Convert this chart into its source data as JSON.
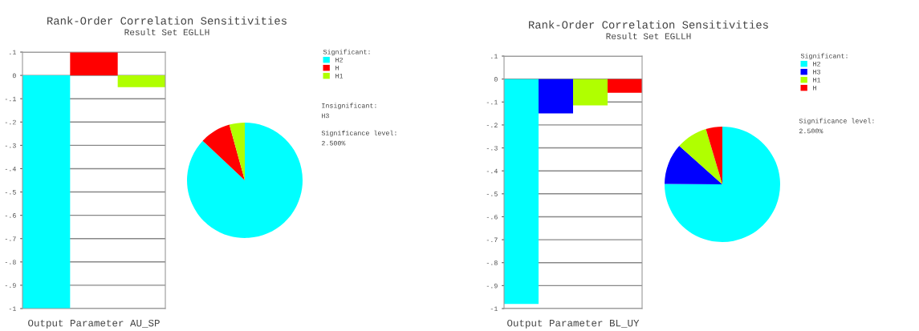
{
  "chart_data": [
    {
      "type": "bar",
      "title": "Rank-Order Correlation Sensitivities",
      "subtitle": "Result Set EGLLH",
      "xlabel": "Output Parameter AU_SP",
      "categories": [
        null,
        null,
        null
      ],
      "values": [
        -1,
        0.1,
        -0.05
      ],
      "colors": [
        "#00ffff",
        "#ff0000",
        "#b0ff00"
      ],
      "ylim": [
        -1,
        0.1
      ],
      "yticks": [
        {
          "value": 0.1,
          "label": ".1"
        },
        0,
        {
          "value": -0.1,
          "label": "-.1"
        },
        {
          "value": -0.2,
          "label": "-.2"
        },
        {
          "value": -0.3,
          "label": "-.3"
        },
        {
          "value": -0.4,
          "label": "-.4"
        },
        {
          "value": -0.5,
          "label": "-.5"
        },
        {
          "value": -0.6,
          "label": "-.6"
        },
        {
          "value": -0.7,
          "label": "-.7"
        },
        {
          "value": -0.8,
          "label": "-.8"
        },
        {
          "value": -0.9,
          "label": "-.9"
        },
        -1
      ],
      "grid": "y"
    },
    {
      "type": "pie",
      "categories": [
        "H2",
        "H",
        "H1"
      ],
      "values": [
        87,
        8.7,
        4.3
      ],
      "colors": [
        "#00ffff",
        "#ff0000",
        "#b0ff00"
      ],
      "legend": "right",
      "legend_title": "Significant:",
      "annotations": [
        "Insignificant:",
        "H3",
        "Significance level:",
        "2.500%"
      ]
    },
    {
      "type": "bar",
      "title": "Rank-Order Correlation Sensitivities",
      "subtitle": "Result Set EGLLH",
      "xlabel": "Output Parameter BL_UY",
      "categories": [
        null,
        null,
        null,
        null
      ],
      "values": [
        -0.98,
        -0.15,
        -0.115,
        -0.06
      ],
      "colors": [
        "#00ffff",
        "#0000ff",
        "#b0ff00",
        "#ff0000"
      ],
      "ylim": [
        -1,
        0.1
      ],
      "yticks": [
        {
          "value": 0.1,
          "label": ".1"
        },
        0,
        {
          "value": -0.1,
          "label": "-.1"
        },
        {
          "value": -0.2,
          "label": "-.2"
        },
        {
          "value": -0.3,
          "label": "-.3"
        },
        {
          "value": -0.4,
          "label": "-.4"
        },
        {
          "value": -0.5,
          "label": "-.5"
        },
        {
          "value": -0.6,
          "label": "-.6"
        },
        {
          "value": -0.7,
          "label": "-.7"
        },
        {
          "value": -0.8,
          "label": "-.8"
        },
        {
          "value": -0.9,
          "label": "-.9"
        },
        -1
      ],
      "grid": "y"
    },
    {
      "type": "pie",
      "categories": [
        "H2",
        "H3",
        "H1",
        "H"
      ],
      "values": [
        75.1,
        11.5,
        8.8,
        4.6
      ],
      "colors": [
        "#00ffff",
        "#0000ff",
        "#b0ff00",
        "#ff0000"
      ],
      "legend": "right",
      "legend_title": "Significant:",
      "annotations": [
        "Significance level:",
        "2.500%"
      ]
    }
  ]
}
